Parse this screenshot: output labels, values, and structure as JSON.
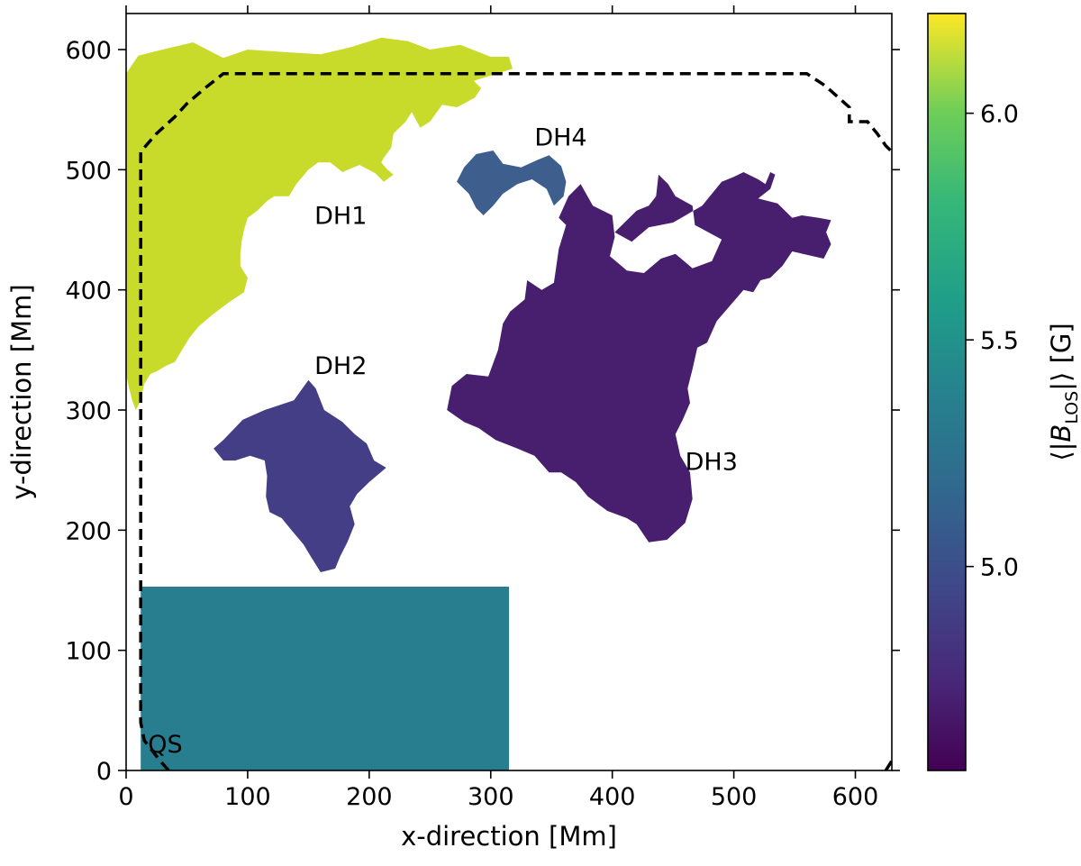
{
  "chart_data": {
    "type": "heatmap",
    "xlabel": "x-direction [Mm]",
    "ylabel": "y-direction [Mm]",
    "xlim": [
      0,
      630
    ],
    "ylim": [
      0,
      630
    ],
    "x_ticks": [
      "0",
      "100",
      "200",
      "300",
      "400",
      "500",
      "600"
    ],
    "y_ticks": [
      "0",
      "100",
      "200",
      "300",
      "400",
      "500",
      "600"
    ],
    "grid": false,
    "colorbar": {
      "label_prefix": "⟨|",
      "label_var": "B",
      "label_sub": "LOS",
      "label_suffix": "|⟩ [G]",
      "min": 4.55,
      "max": 6.22,
      "ticks": [
        "5.0",
        "5.5",
        "6.0"
      ],
      "colormap": "viridis"
    },
    "regions": [
      {
        "name": "DH1",
        "value": 6.1,
        "color": "#c8db2a",
        "outline": [
          [
            0,
            580
          ],
          [
            10,
            595
          ],
          [
            30,
            600
          ],
          [
            55,
            606
          ],
          [
            80,
            593
          ],
          [
            100,
            600
          ],
          [
            130,
            598
          ],
          [
            160,
            596
          ],
          [
            185,
            602
          ],
          [
            210,
            610
          ],
          [
            232,
            607
          ],
          [
            250,
            600
          ],
          [
            275,
            604
          ],
          [
            300,
            594
          ],
          [
            315,
            594
          ],
          [
            318,
            584
          ],
          [
            286,
            574
          ],
          [
            292,
            568
          ],
          [
            287,
            560
          ],
          [
            278,
            555
          ],
          [
            272,
            552
          ],
          [
            260,
            554
          ],
          [
            250,
            540
          ],
          [
            242,
            535
          ],
          [
            235,
            548
          ],
          [
            230,
            540
          ],
          [
            220,
            530
          ],
          [
            218,
            518
          ],
          [
            212,
            510
          ],
          [
            210,
            506
          ],
          [
            215,
            500
          ],
          [
            220,
            496
          ],
          [
            212,
            490
          ],
          [
            205,
            497
          ],
          [
            192,
            504
          ],
          [
            178,
            498
          ],
          [
            168,
            506
          ],
          [
            158,
            506
          ],
          [
            150,
            500
          ],
          [
            140,
            488
          ],
          [
            134,
            478
          ],
          [
            122,
            478
          ],
          [
            116,
            474
          ],
          [
            108,
            466
          ],
          [
            100,
            460
          ],
          [
            97,
            450
          ],
          [
            95,
            440
          ],
          [
            94,
            430
          ],
          [
            94,
            420
          ],
          [
            100,
            410
          ],
          [
            97,
            398
          ],
          [
            85,
            390
          ],
          [
            72,
            380
          ],
          [
            60,
            370
          ],
          [
            52,
            360
          ],
          [
            46,
            350
          ],
          [
            40,
            340
          ],
          [
            33,
            337
          ],
          [
            25,
            332
          ],
          [
            20,
            330
          ],
          [
            15,
            322
          ],
          [
            12,
            308
          ],
          [
            8,
            300
          ],
          [
            5,
            308
          ],
          [
            2,
            320
          ],
          [
            0,
            330
          ]
        ],
        "label": "DH1",
        "label_x": 155,
        "label_y": 455
      },
      {
        "name": "DH2",
        "value": 4.84,
        "color": "#433e85",
        "outline": [
          [
            72,
            268
          ],
          [
            80,
            275
          ],
          [
            96,
            292
          ],
          [
            114,
            300
          ],
          [
            138,
            308
          ],
          [
            150,
            325
          ],
          [
            156,
            318
          ],
          [
            163,
            300
          ],
          [
            178,
            290
          ],
          [
            188,
            280
          ],
          [
            198,
            272
          ],
          [
            204,
            258
          ],
          [
            214,
            252
          ],
          [
            200,
            240
          ],
          [
            190,
            230
          ],
          [
            184,
            220
          ],
          [
            188,
            205
          ],
          [
            182,
            190
          ],
          [
            176,
            178
          ],
          [
            172,
            168
          ],
          [
            160,
            165
          ],
          [
            152,
            178
          ],
          [
            146,
            188
          ],
          [
            136,
            200
          ],
          [
            128,
            210
          ],
          [
            118,
            215
          ],
          [
            115,
            228
          ],
          [
            116,
            245
          ],
          [
            114,
            258
          ],
          [
            102,
            262
          ],
          [
            90,
            258
          ],
          [
            80,
            258
          ]
        ],
        "label": "DH2",
        "label_x": 155,
        "label_y": 330
      },
      {
        "name": "DH3",
        "value": 4.63,
        "color": "#471f6e",
        "outline": [
          [
            264,
            300
          ],
          [
            268,
            320
          ],
          [
            280,
            330
          ],
          [
            298,
            328
          ],
          [
            306,
            350
          ],
          [
            310,
            372
          ],
          [
            316,
            382
          ],
          [
            328,
            392
          ],
          [
            330,
            408
          ],
          [
            342,
            400
          ],
          [
            352,
            406
          ],
          [
            356,
            434
          ],
          [
            362,
            454
          ],
          [
            356,
            460
          ],
          [
            364,
            478
          ],
          [
            374,
            488
          ],
          [
            384,
            470
          ],
          [
            400,
            462
          ],
          [
            402,
            444
          ],
          [
            398,
            428
          ],
          [
            412,
            416
          ],
          [
            426,
            414
          ],
          [
            440,
            426
          ],
          [
            452,
            430
          ],
          [
            466,
            418
          ],
          [
            482,
            424
          ],
          [
            490,
            442
          ],
          [
            468,
            454
          ],
          [
            466,
            470
          ],
          [
            452,
            478
          ],
          [
            446,
            488
          ],
          [
            438,
            496
          ],
          [
            436,
            478
          ],
          [
            430,
            470
          ],
          [
            420,
            466
          ],
          [
            402,
            448
          ],
          [
            416,
            440
          ],
          [
            430,
            452
          ],
          [
            450,
            456
          ],
          [
            474,
            470
          ],
          [
            482,
            480
          ],
          [
            490,
            490
          ],
          [
            500,
            494
          ],
          [
            508,
            498
          ],
          [
            520,
            492
          ],
          [
            526,
            488
          ],
          [
            530,
            498
          ],
          [
            534,
            496
          ],
          [
            530,
            484
          ],
          [
            520,
            476
          ],
          [
            536,
            472
          ],
          [
            548,
            460
          ],
          [
            556,
            462
          ],
          [
            570,
            460
          ],
          [
            580,
            458
          ],
          [
            576,
            448
          ],
          [
            580,
            438
          ],
          [
            574,
            426
          ],
          [
            548,
            432
          ],
          [
            540,
            420
          ],
          [
            530,
            410
          ],
          [
            522,
            408
          ],
          [
            516,
            398
          ],
          [
            508,
            400
          ],
          [
            486,
            374
          ],
          [
            478,
            356
          ],
          [
            470,
            352
          ],
          [
            466,
            334
          ],
          [
            462,
            318
          ],
          [
            464,
            306
          ],
          [
            458,
            292
          ],
          [
            452,
            280
          ],
          [
            456,
            262
          ],
          [
            464,
            248
          ],
          [
            466,
            226
          ],
          [
            460,
            206
          ],
          [
            445,
            192
          ],
          [
            430,
            190
          ],
          [
            420,
            205
          ],
          [
            412,
            210
          ],
          [
            396,
            216
          ],
          [
            380,
            228
          ],
          [
            370,
            240
          ],
          [
            358,
            248
          ],
          [
            348,
            248
          ],
          [
            336,
            262
          ],
          [
            322,
            268
          ],
          [
            304,
            275
          ],
          [
            290,
            285
          ],
          [
            278,
            290
          ]
        ],
        "label": "DH3",
        "label_x": 460,
        "label_y": 250
      },
      {
        "name": "DH4",
        "value": 5.06,
        "color": "#3e5e8d",
        "outline": [
          [
            272,
            490
          ],
          [
            278,
            502
          ],
          [
            288,
            513
          ],
          [
            302,
            516
          ],
          [
            310,
            505
          ],
          [
            325,
            502
          ],
          [
            338,
            508
          ],
          [
            348,
            512
          ],
          [
            358,
            503
          ],
          [
            362,
            490
          ],
          [
            360,
            478
          ],
          [
            352,
            470
          ],
          [
            346,
            484
          ],
          [
            334,
            492
          ],
          [
            322,
            488
          ],
          [
            310,
            480
          ],
          [
            302,
            470
          ],
          [
            294,
            462
          ],
          [
            288,
            468
          ],
          [
            282,
            480
          ]
        ],
        "label": "DH4",
        "label_x": 336,
        "label_y": 520
      },
      {
        "name": "QS",
        "value": 5.33,
        "color": "#287d8e",
        "x0": 12,
        "x1": 315,
        "y0": 0,
        "y1": 153,
        "label": "QS",
        "label_x": 18,
        "label_y": 15
      }
    ],
    "dashed_boundary": [
      [
        35,
        0
      ],
      [
        28,
        8
      ],
      [
        15,
        25
      ],
      [
        12,
        40
      ],
      [
        12,
        515
      ],
      [
        25,
        530
      ],
      [
        40,
        544
      ],
      [
        50,
        555
      ],
      [
        65,
        568
      ],
      [
        80,
        580
      ],
      [
        560,
        580
      ],
      [
        575,
        570
      ],
      [
        595,
        552
      ],
      [
        595,
        540
      ],
      [
        610,
        540
      ],
      [
        618,
        530
      ],
      [
        625,
        520
      ],
      [
        630,
        515
      ]
    ],
    "dashed_boundary_corner": [
      [
        625,
        0
      ],
      [
        630,
        8
      ]
    ]
  }
}
